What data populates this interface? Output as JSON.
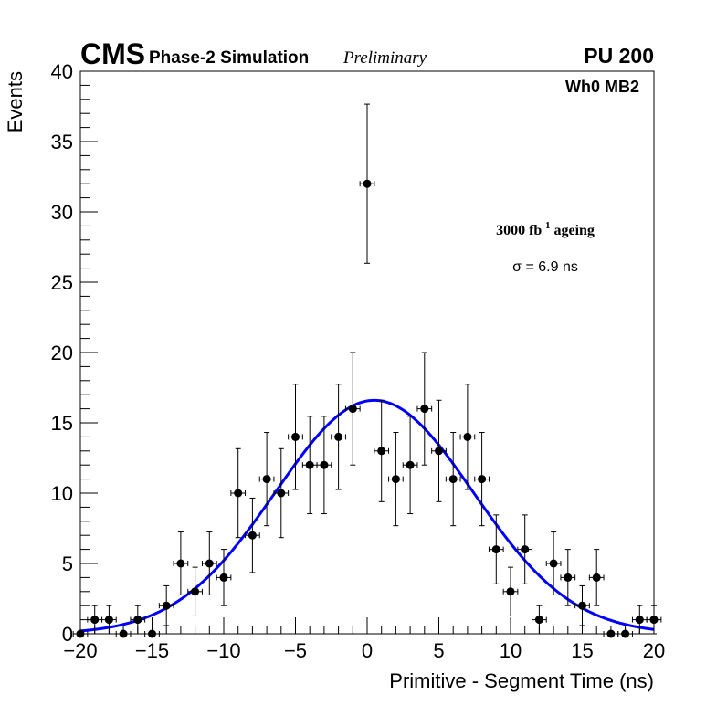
{
  "header": {
    "experiment": "CMS",
    "simulation": "Phase-2 Simulation",
    "status": "Preliminary",
    "pileup": "PU 200"
  },
  "annotations": {
    "station": "Wh0 MB2",
    "ageing_main": "3000 fb",
    "ageing_sup": "-1",
    "ageing_rest": " ageing",
    "sigma": "σ = 6.9 ns"
  },
  "colors": {
    "fit": "#0000ff",
    "points": "#000000"
  },
  "chart_data": {
    "type": "scatter",
    "title": "",
    "xlabel": "Primitive - Segment Time (ns)",
    "ylabel": "Events",
    "xlim": [
      -20,
      20
    ],
    "ylim": [
      0,
      40
    ],
    "xticks": [
      -20,
      -15,
      -10,
      -5,
      0,
      5,
      10,
      15,
      20
    ],
    "xtick_labels": [
      "−20",
      "−15",
      "−10",
      "−5",
      "0",
      "5",
      "10",
      "15",
      "20"
    ],
    "yticks": [
      0,
      5,
      10,
      15,
      20,
      25,
      30,
      35,
      40
    ],
    "ytick_labels": [
      "0",
      "5",
      "10",
      "15",
      "20",
      "25",
      "30",
      "35",
      "40"
    ],
    "bin_width": 1,
    "series": [
      {
        "name": "Data",
        "x": [
          -20,
          -19,
          -18,
          -17,
          -16,
          -15,
          -14,
          -13,
          -12,
          -11,
          -10,
          -9,
          -8,
          -7,
          -6,
          -5,
          -4,
          -3,
          -2,
          -1,
          0,
          1,
          2,
          3,
          4,
          5,
          6,
          7,
          8,
          9,
          10,
          11,
          12,
          13,
          14,
          15,
          16,
          17,
          18,
          19,
          20
        ],
        "y": [
          0,
          1,
          1,
          0,
          1,
          0,
          2,
          5,
          3,
          5,
          4,
          10,
          7,
          11,
          10,
          14,
          12,
          12,
          14,
          16,
          32,
          13,
          11,
          12,
          16,
          13,
          11,
          14,
          11,
          6,
          3,
          6,
          1,
          5,
          4,
          2,
          4,
          0,
          0,
          1,
          1
        ]
      },
      {
        "name": "Gaussian fit",
        "amplitude": 16.6,
        "mean": 0.5,
        "sigma": 6.9
      }
    ]
  }
}
